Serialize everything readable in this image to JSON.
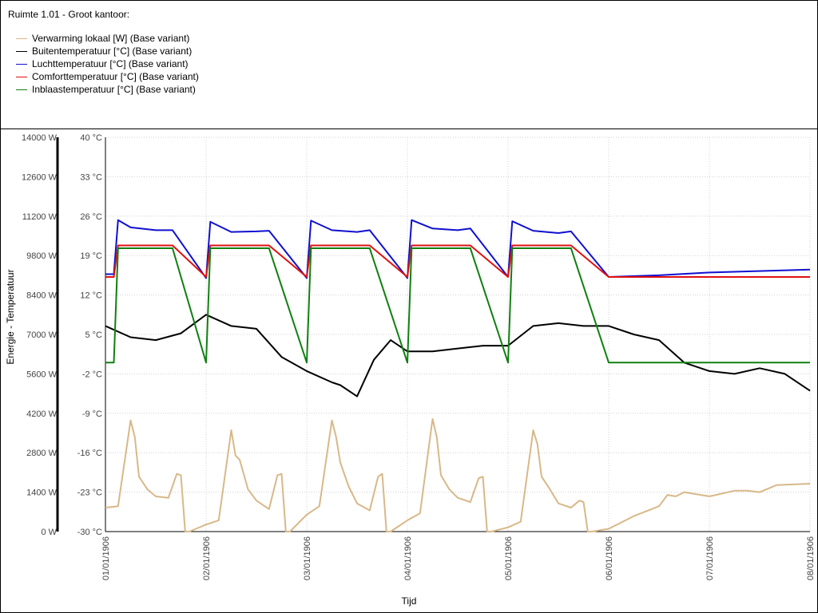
{
  "title": "Ruimte 1.01 - Groot kantoor:",
  "legend": [
    {
      "label": "Verwarming lokaal [W] (Base variant)",
      "color": "#d8b888"
    },
    {
      "label": "Buitentemperatuur [°C] (Base variant)",
      "color": "#000000"
    },
    {
      "label": "Luchttemperatuur [°C] (Base variant)",
      "color": "#1010d0"
    },
    {
      "label": "Comforttemperatuur [°C] (Base variant)",
      "color": "#e01010"
    },
    {
      "label": "Inblaastemperatuur [°C] (Base variant)",
      "color": "#108010"
    }
  ],
  "chart_data": {
    "type": "line",
    "xlabel": "Tijd",
    "ylabel": "Energie - Temperatuur",
    "grid": true,
    "x_range": [
      "1906-01-01",
      "1906-01-08"
    ],
    "x_ticks": [
      "01/01/1906",
      "02/01/1906",
      "03/01/1906",
      "04/01/1906",
      "05/01/1906",
      "06/01/1906",
      "07/01/1906",
      "08/01/1906"
    ],
    "y_left": {
      "unit": "W",
      "min": 0,
      "max": 14000,
      "ticks": [
        "14000 W",
        "12600 W",
        "11200 W",
        "9800 W",
        "8400 W",
        "7000 W",
        "5600 W",
        "4200 W",
        "2800 W",
        "1400 W",
        "0 W"
      ]
    },
    "y_right": {
      "unit": "°C",
      "min": -30,
      "max": 40,
      "ticks": [
        "40 °C",
        "33 °C",
        "26 °C",
        "19 °C",
        "12 °C",
        "5 °C",
        "-2 °C",
        "-9 °C",
        "-16 °C",
        "-23 °C",
        "-30 °C"
      ]
    },
    "series": [
      {
        "name": "Verwarming lokaal [W] (Base variant)",
        "axis": "left",
        "color": "#d8b888",
        "x": [
          "1906-01-01 00:00",
          "1906-01-01 03:00",
          "1906-01-01 06:00",
          "1906-01-01 07:00",
          "1906-01-01 08:00",
          "1906-01-01 10:00",
          "1906-01-01 12:00",
          "1906-01-01 15:00",
          "1906-01-01 17:00",
          "1906-01-01 18:00",
          "1906-01-01 19:00",
          "1906-01-01 20:00",
          "1906-01-02 00:00",
          "1906-01-02 03:00",
          "1906-01-02 06:00",
          "1906-01-02 07:00",
          "1906-01-02 08:00",
          "1906-01-02 10:00",
          "1906-01-02 12:00",
          "1906-01-02 15:00",
          "1906-01-02 17:00",
          "1906-01-02 18:00",
          "1906-01-02 19:00",
          "1906-01-02 20:00",
          "1906-01-03 00:00",
          "1906-01-03 03:00",
          "1906-01-03 06:00",
          "1906-01-03 07:00",
          "1906-01-03 08:00",
          "1906-01-03 10:00",
          "1906-01-03 12:00",
          "1906-01-03 15:00",
          "1906-01-03 17:00",
          "1906-01-03 18:00",
          "1906-01-03 19:00",
          "1906-01-03 20:00",
          "1906-01-04 00:00",
          "1906-01-04 03:00",
          "1906-01-04 06:00",
          "1906-01-04 07:00",
          "1906-01-04 08:00",
          "1906-01-04 10:00",
          "1906-01-04 12:00",
          "1906-01-04 15:00",
          "1906-01-04 17:00",
          "1906-01-04 18:00",
          "1906-01-04 19:00",
          "1906-01-04 20:00",
          "1906-01-05 00:00",
          "1906-01-05 03:00",
          "1906-01-05 06:00",
          "1906-01-05 07:00",
          "1906-01-05 08:00",
          "1906-01-05 10:00",
          "1906-01-05 12:00",
          "1906-01-05 15:00",
          "1906-01-05 17:00",
          "1906-01-05 18:00",
          "1906-01-05 19:00",
          "1906-01-05 20:00",
          "1906-01-06 00:00",
          "1906-01-06 06:00",
          "1906-01-06 12:00",
          "1906-01-06 14:00",
          "1906-01-06 16:00",
          "1906-01-06 18:00",
          "1906-01-07 00:00",
          "1906-01-07 06:00",
          "1906-01-07 09:00",
          "1906-01-07 12:00",
          "1906-01-07 16:00",
          "1906-01-08 00:00"
        ],
        "values": [
          850,
          900,
          3950,
          3350,
          1950,
          1500,
          1250,
          1200,
          2050,
          2000,
          0,
          0,
          250,
          400,
          3600,
          2700,
          2550,
          1500,
          1100,
          800,
          2000,
          2050,
          0,
          0,
          600,
          900,
          3950,
          3350,
          2450,
          1600,
          1000,
          750,
          1950,
          2050,
          0,
          0,
          400,
          650,
          4000,
          3350,
          2000,
          1500,
          1200,
          1050,
          1900,
          1950,
          0,
          0,
          150,
          350,
          3600,
          3100,
          1950,
          1500,
          1000,
          850,
          1100,
          1050,
          0,
          0,
          100,
          550,
          900,
          1300,
          1250,
          1400,
          1250,
          1450,
          1450,
          1400,
          1650,
          1700
        ]
      },
      {
        "name": "Buitentemperatuur [°C] (Base variant)",
        "axis": "right",
        "color": "#000000",
        "x": [
          "1906-01-01 00:00",
          "1906-01-01 06:00",
          "1906-01-01 12:00",
          "1906-01-01 18:00",
          "1906-01-02 00:00",
          "1906-01-02 06:00",
          "1906-01-02 12:00",
          "1906-01-02 18:00",
          "1906-01-03 00:00",
          "1906-01-03 06:00",
          "1906-01-03 08:00",
          "1906-01-03 12:00",
          "1906-01-03 16:00",
          "1906-01-03 20:00",
          "1906-01-04 00:00",
          "1906-01-04 06:00",
          "1906-01-04 12:00",
          "1906-01-04 18:00",
          "1906-01-05 00:00",
          "1906-01-05 06:00",
          "1906-01-05 12:00",
          "1906-01-05 18:00",
          "1906-01-06 00:00",
          "1906-01-06 06:00",
          "1906-01-06 12:00",
          "1906-01-06 18:00",
          "1906-01-07 00:00",
          "1906-01-07 06:00",
          "1906-01-07 12:00",
          "1906-01-07 18:00",
          "1906-01-08 00:00"
        ],
        "values": [
          6.5,
          4.5,
          4.0,
          5.2,
          8.5,
          6.5,
          6.0,
          1.0,
          -1.5,
          -3.5,
          -4.0,
          -6.0,
          0.5,
          4.0,
          2.0,
          2.0,
          2.5,
          3.0,
          3.0,
          6.5,
          7.0,
          6.5,
          6.5,
          5.0,
          4.0,
          0.0,
          -1.5,
          -2.0,
          -1.0,
          -2.0,
          -5.0
        ]
      },
      {
        "name": "Luchttemperatuur [°C] (Base variant)",
        "axis": "right",
        "color": "#1010d0",
        "x": [
          "1906-01-01 00:00",
          "1906-01-01 02:00",
          "1906-01-01 03:00",
          "1906-01-01 06:00",
          "1906-01-01 12:00",
          "1906-01-01 16:00",
          "1906-01-02 00:00",
          "1906-01-02 01:00",
          "1906-01-02 06:00",
          "1906-01-02 12:00",
          "1906-01-02 15:00",
          "1906-01-03 00:00",
          "1906-01-03 01:00",
          "1906-01-03 06:00",
          "1906-01-03 12:00",
          "1906-01-03 15:00",
          "1906-01-04 00:00",
          "1906-01-04 01:00",
          "1906-01-04 06:00",
          "1906-01-04 12:00",
          "1906-01-04 15:00",
          "1906-01-05 00:00",
          "1906-01-05 01:00",
          "1906-01-05 06:00",
          "1906-01-05 12:00",
          "1906-01-05 15:00",
          "1906-01-06 00:00",
          "1906-01-06 12:00",
          "1906-01-07 00:00",
          "1906-01-08 00:00"
        ],
        "values": [
          15.7,
          15.7,
          25.3,
          24.0,
          23.5,
          23.5,
          15.0,
          25.0,
          23.2,
          23.3,
          23.4,
          15.0,
          25.2,
          23.5,
          23.2,
          23.5,
          15.0,
          25.3,
          23.8,
          23.5,
          23.8,
          15.2,
          25.1,
          23.4,
          23.0,
          23.3,
          15.2,
          15.5,
          16.0,
          16.5
        ]
      },
      {
        "name": "Comforttemperatuur [°C] (Base variant)",
        "axis": "right",
        "color": "#e01010",
        "x": [
          "1906-01-01 00:00",
          "1906-01-01 02:00",
          "1906-01-01 03:00",
          "1906-01-01 16:00",
          "1906-01-02 00:00",
          "1906-01-02 01:00",
          "1906-01-02 15:00",
          "1906-01-03 00:00",
          "1906-01-03 01:00",
          "1906-01-03 15:00",
          "1906-01-04 00:00",
          "1906-01-04 01:00",
          "1906-01-04 15:00",
          "1906-01-05 00:00",
          "1906-01-05 01:00",
          "1906-01-05 15:00",
          "1906-01-06 00:00",
          "1906-01-08 00:00"
        ],
        "values": [
          15.2,
          15.2,
          20.8,
          20.8,
          15.2,
          20.8,
          20.8,
          15.2,
          20.8,
          20.8,
          15.2,
          20.8,
          20.8,
          15.2,
          20.8,
          20.8,
          15.2,
          15.2
        ]
      },
      {
        "name": "Inblaastemperatuur [°C] (Base variant)",
        "axis": "right",
        "color": "#108010",
        "x": [
          "1906-01-01 00:00",
          "1906-01-01 02:00",
          "1906-01-01 03:00",
          "1906-01-01 16:00",
          "1906-01-02 00:00",
          "1906-01-02 01:00",
          "1906-01-02 15:00",
          "1906-01-03 00:00",
          "1906-01-03 01:00",
          "1906-01-03 15:00",
          "1906-01-04 00:00",
          "1906-01-04 01:00",
          "1906-01-04 15:00",
          "1906-01-05 00:00",
          "1906-01-05 01:00",
          "1906-01-05 15:00",
          "1906-01-06 00:00",
          "1906-01-08 00:00"
        ],
        "values": [
          0,
          0,
          20.3,
          20.3,
          0,
          20.3,
          20.3,
          0,
          20.3,
          20.3,
          0,
          20.3,
          20.3,
          0,
          20.3,
          20.3,
          0,
          0
        ]
      }
    ]
  }
}
